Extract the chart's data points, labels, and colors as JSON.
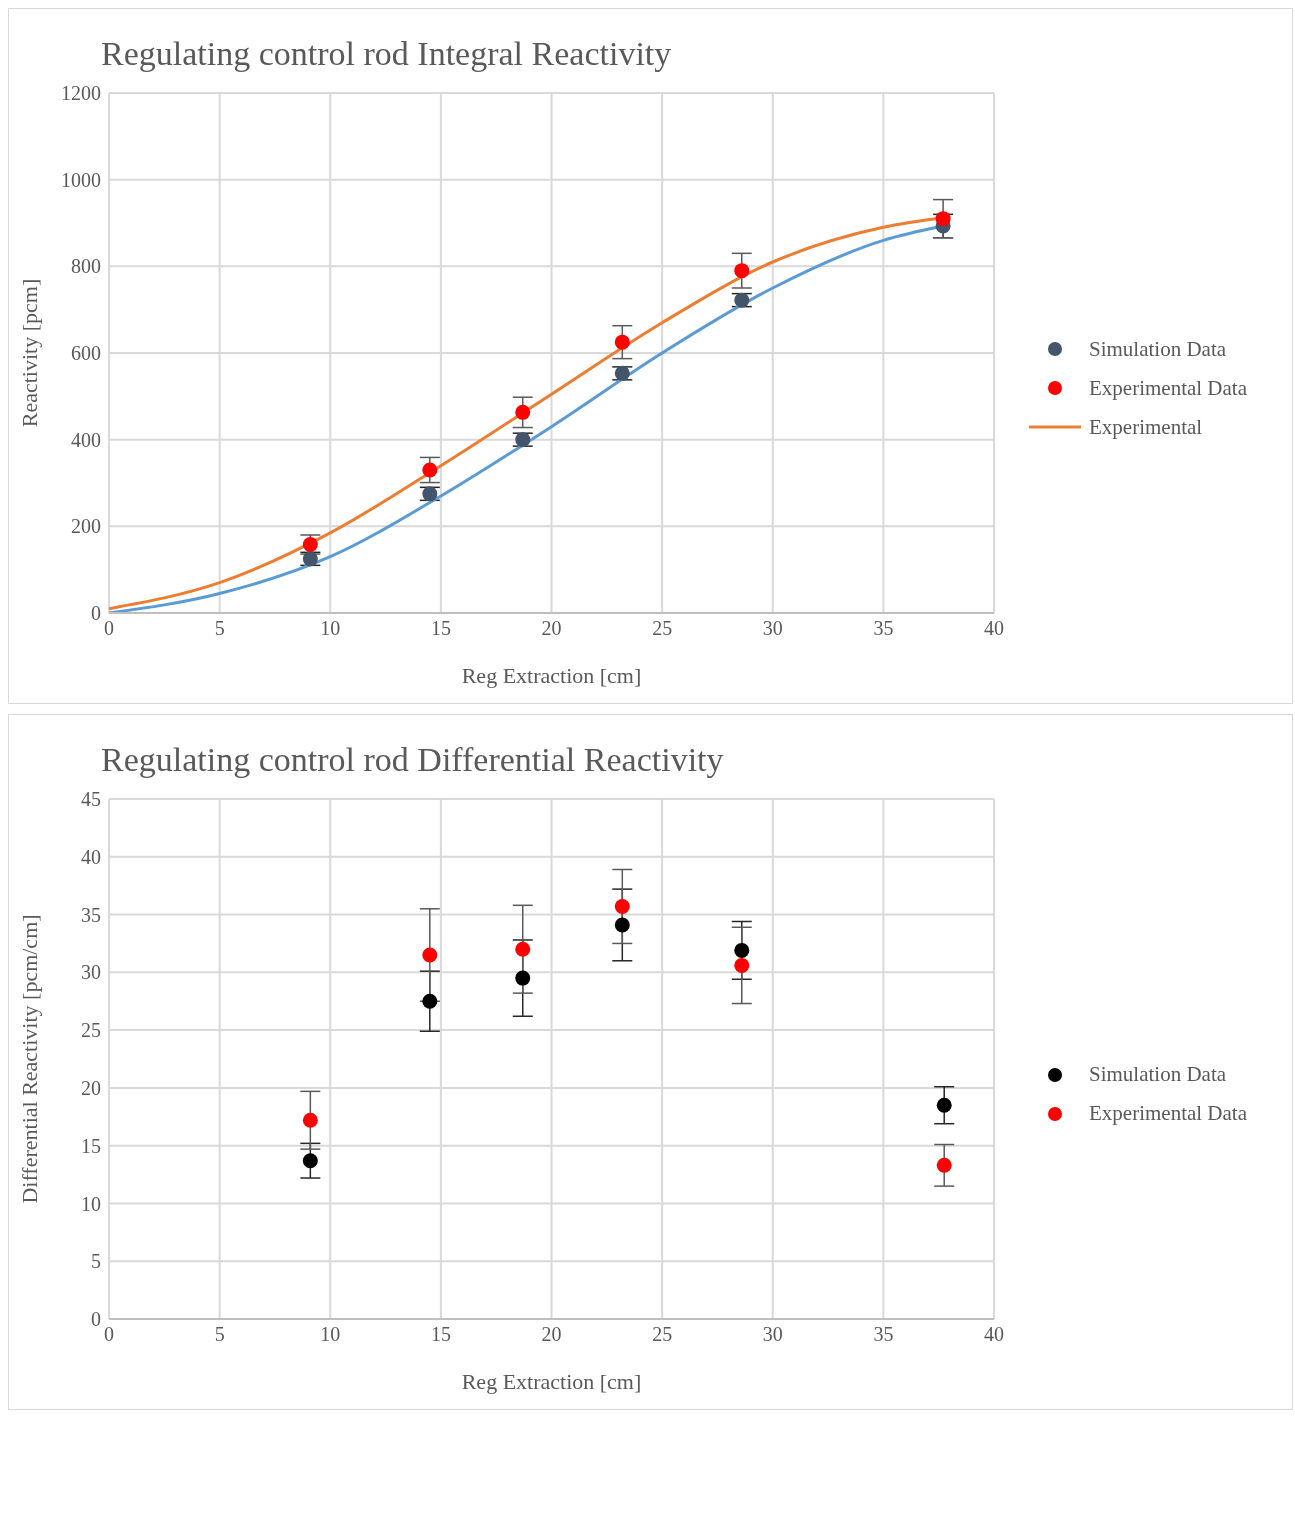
{
  "chart_data": [
    {
      "type": "scatter",
      "title": "Regulating control rod Integral Reactivity",
      "xlabel": "Reg Extraction  [cm]",
      "ylabel": "Reactivity  [pcm]",
      "xlim": [
        0,
        40
      ],
      "xticks": [
        0,
        5,
        10,
        15,
        20,
        25,
        30,
        35,
        40
      ],
      "ylim": [
        0,
        1200
      ],
      "yticks": [
        0,
        200,
        400,
        600,
        800,
        1000,
        1200
      ],
      "grid": true,
      "legend": "right",
      "line_style": "solid",
      "series": [
        {
          "marker": "circle",
          "name": "Simulation Data",
          "color": "#44546a",
          "x": [
            9.1,
            14.5,
            18.7,
            23.2,
            28.6,
            37.7
          ],
          "values": [
            125,
            275,
            400,
            553,
            722,
            893
          ],
          "errors": [
            15,
            15,
            15,
            15,
            15,
            27
          ]
        },
        {
          "marker": "circle",
          "name": "Experimental Data",
          "color": "#ff0000",
          "x": [
            9.1,
            14.5,
            18.7,
            23.2,
            28.6,
            37.7
          ],
          "values": [
            158,
            330,
            463,
            625,
            790,
            910
          ],
          "errors": [
            22,
            29,
            35,
            38,
            40,
            44
          ]
        },
        {
          "type": "line",
          "marker": "none",
          "color": "#5b9bd5",
          "x": [
            0,
            5,
            10,
            15,
            20,
            25,
            30,
            35,
            37.7
          ],
          "values": [
            0,
            45,
            130,
            270,
            430,
            600,
            750,
            860,
            893
          ]
        },
        {
          "type": "line",
          "marker": "none",
          "name": "Experimental",
          "color": "#ed7d31",
          "x": [
            0,
            5,
            10,
            15,
            20,
            25,
            30,
            35,
            37.7
          ],
          "values": [
            10,
            70,
            185,
            340,
            505,
            670,
            810,
            890,
            912
          ]
        }
      ]
    },
    {
      "type": "scatter",
      "title": "Regulating control rod Differential Reactivity",
      "xlabel": "Reg Extraction  [cm]",
      "ylabel": "Differential Reactivity  [pcm/cm]",
      "xlim": [
        0,
        40
      ],
      "xticks": [
        0,
        5,
        10,
        15,
        20,
        25,
        30,
        35,
        40
      ],
      "ylim": [
        0,
        45
      ],
      "yticks": [
        0,
        5,
        10,
        15,
        20,
        25,
        30,
        35,
        40,
        45
      ],
      "grid": true,
      "legend": "right",
      "series": [
        {
          "marker": "circle",
          "name": "Simulation Data",
          "color": "#000000",
          "x": [
            9.1,
            14.5,
            18.7,
            23.2,
            28.6,
            37.75
          ],
          "values": [
            13.7,
            27.5,
            29.5,
            34.1,
            31.9,
            18.5
          ],
          "errors": [
            1.5,
            2.6,
            3.3,
            3.1,
            2.5,
            1.6
          ]
        },
        {
          "marker": "circle",
          "name": "Experimental Data",
          "color": "#ff0000",
          "x": [
            9.1,
            14.5,
            18.7,
            23.2,
            28.6,
            37.75
          ],
          "values": [
            17.2,
            31.5,
            32.0,
            35.7,
            30.6,
            13.3
          ],
          "errors": [
            2.5,
            4.0,
            3.8,
            3.2,
            3.3,
            1.8
          ]
        }
      ]
    }
  ]
}
